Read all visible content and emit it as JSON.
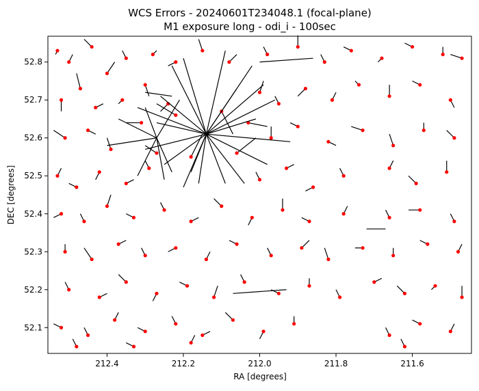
{
  "chart_data": {
    "type": "scatter",
    "title_line1": "WCS Errors - 20240601T234048.1 (focal-plane)",
    "title_line2": "M1 exposure long - odi_i - 100sec",
    "xlabel": "RA [degrees]",
    "ylabel": "DEC [degrees]",
    "xlim": [
      212.555,
      211.445
    ],
    "ylim": [
      52.032,
      52.868
    ],
    "x_inverted": true,
    "grid": false,
    "point_color": "#ff0000",
    "vector_color": "#000000",
    "x_ticks": [
      {
        "value": 212.4,
        "label": "212.4"
      },
      {
        "value": 212.2,
        "label": "212.2"
      },
      {
        "value": 212.0,
        "label": "212.0"
      },
      {
        "value": 211.8,
        "label": "211.8"
      },
      {
        "value": 211.6,
        "label": "211.6"
      }
    ],
    "y_ticks": [
      {
        "value": 52.1,
        "label": "52.1"
      },
      {
        "value": 52.2,
        "label": "52.2"
      },
      {
        "value": 52.3,
        "label": "52.3"
      },
      {
        "value": 52.4,
        "label": "52.4"
      },
      {
        "value": 52.5,
        "label": "52.5"
      },
      {
        "value": 52.6,
        "label": "52.6"
      },
      {
        "value": 52.7,
        "label": "52.7"
      },
      {
        "value": 52.8,
        "label": "52.8"
      }
    ],
    "points": [
      {
        "x": 212.53,
        "y": 52.83,
        "dx": 0.005,
        "dy": -0.01
      },
      {
        "x": 212.5,
        "y": 52.8,
        "dx": -0.01,
        "dy": 0.02
      },
      {
        "x": 212.44,
        "y": 52.84,
        "dx": 0.02,
        "dy": 0.02
      },
      {
        "x": 212.4,
        "y": 52.77,
        "dx": -0.02,
        "dy": 0.03
      },
      {
        "x": 212.35,
        "y": 52.81,
        "dx": 0.01,
        "dy": 0.02
      },
      {
        "x": 212.28,
        "y": 52.82,
        "dx": -0.01,
        "dy": 0.01
      },
      {
        "x": 212.22,
        "y": 52.8,
        "dx": 0.02,
        "dy": -0.01
      },
      {
        "x": 212.15,
        "y": 52.83,
        "dx": 0.01,
        "dy": 0.03
      },
      {
        "x": 212.08,
        "y": 52.8,
        "dx": -0.02,
        "dy": 0.02
      },
      {
        "x": 211.98,
        "y": 52.82,
        "dx": 0.01,
        "dy": 0.02
      },
      {
        "x": 211.9,
        "y": 52.84,
        "dx": 0.0,
        "dy": 0.03
      },
      {
        "x": 211.83,
        "y": 52.8,
        "dx": 0.01,
        "dy": 0.02
      },
      {
        "x": 211.76,
        "y": 52.83,
        "dx": 0.02,
        "dy": 0.01
      },
      {
        "x": 211.68,
        "y": 52.81,
        "dx": 0.01,
        "dy": -0.01
      },
      {
        "x": 211.6,
        "y": 52.84,
        "dx": 0.02,
        "dy": 0.01
      },
      {
        "x": 211.52,
        "y": 52.82,
        "dx": 0.0,
        "dy": 0.02
      },
      {
        "x": 211.47,
        "y": 52.81,
        "dx": 0.03,
        "dy": 0.01
      },
      {
        "x": 212.52,
        "y": 52.7,
        "dx": 0.0,
        "dy": -0.03
      },
      {
        "x": 212.47,
        "y": 52.73,
        "dx": 0.01,
        "dy": 0.04
      },
      {
        "x": 212.43,
        "y": 52.68,
        "dx": -0.02,
        "dy": 0.01
      },
      {
        "x": 212.36,
        "y": 52.7,
        "dx": 0.01,
        "dy": -0.01
      },
      {
        "x": 212.3,
        "y": 52.74,
        "dx": -0.01,
        "dy": -0.03
      },
      {
        "x": 212.24,
        "y": 52.69,
        "dx": 0.02,
        "dy": -0.02
      },
      {
        "x": 212.0,
        "y": 52.72,
        "dx": -0.01,
        "dy": 0.03
      },
      {
        "x": 211.95,
        "y": 52.69,
        "dx": 0.01,
        "dy": 0.02
      },
      {
        "x": 211.88,
        "y": 52.73,
        "dx": 0.02,
        "dy": -0.02
      },
      {
        "x": 211.81,
        "y": 52.7,
        "dx": -0.01,
        "dy": 0.02
      },
      {
        "x": 211.74,
        "y": 52.74,
        "dx": 0.01,
        "dy": 0.01
      },
      {
        "x": 211.66,
        "y": 52.71,
        "dx": 0.0,
        "dy": 0.03
      },
      {
        "x": 211.58,
        "y": 52.74,
        "dx": 0.02,
        "dy": 0.01
      },
      {
        "x": 211.5,
        "y": 52.7,
        "dx": -0.01,
        "dy": -0.02
      },
      {
        "x": 212.51,
        "y": 52.6,
        "dx": 0.03,
        "dy": 0.02
      },
      {
        "x": 212.45,
        "y": 52.62,
        "dx": -0.02,
        "dy": -0.01
      },
      {
        "x": 212.39,
        "y": 52.57,
        "dx": 0.01,
        "dy": 0.03
      },
      {
        "x": 211.97,
        "y": 52.6,
        "dx": 0.0,
        "dy": 0.03
      },
      {
        "x": 211.9,
        "y": 52.63,
        "dx": 0.02,
        "dy": 0.01
      },
      {
        "x": 211.82,
        "y": 52.59,
        "dx": -0.02,
        "dy": -0.01
      },
      {
        "x": 211.73,
        "y": 52.62,
        "dx": 0.03,
        "dy": 0.01
      },
      {
        "x": 211.65,
        "y": 52.58,
        "dx": 0.01,
        "dy": 0.03
      },
      {
        "x": 211.57,
        "y": 52.62,
        "dx": 0.0,
        "dy": 0.02
      },
      {
        "x": 211.49,
        "y": 52.6,
        "dx": 0.02,
        "dy": 0.02
      },
      {
        "x": 212.53,
        "y": 52.5,
        "dx": -0.01,
        "dy": 0.02
      },
      {
        "x": 212.48,
        "y": 52.47,
        "dx": 0.02,
        "dy": 0.01
      },
      {
        "x": 212.42,
        "y": 52.51,
        "dx": 0.01,
        "dy": -0.02
      },
      {
        "x": 212.35,
        "y": 52.48,
        "dx": -0.02,
        "dy": 0.01
      },
      {
        "x": 212.29,
        "y": 52.52,
        "dx": 0.01,
        "dy": 0.02
      },
      {
        "x": 212.0,
        "y": 52.49,
        "dx": 0.01,
        "dy": 0.02
      },
      {
        "x": 211.93,
        "y": 52.52,
        "dx": -0.02,
        "dy": 0.01
      },
      {
        "x": 211.86,
        "y": 52.47,
        "dx": 0.02,
        "dy": -0.01
      },
      {
        "x": 211.78,
        "y": 52.5,
        "dx": 0.01,
        "dy": 0.02
      },
      {
        "x": 211.66,
        "y": 52.52,
        "dx": -0.01,
        "dy": 0.02
      },
      {
        "x": 211.59,
        "y": 52.48,
        "dx": 0.02,
        "dy": 0.02
      },
      {
        "x": 211.51,
        "y": 52.51,
        "dx": 0.0,
        "dy": 0.03
      },
      {
        "x": 212.52,
        "y": 52.4,
        "dx": 0.02,
        "dy": -0.01
      },
      {
        "x": 212.46,
        "y": 52.38,
        "dx": 0.01,
        "dy": 0.02
      },
      {
        "x": 212.4,
        "y": 52.42,
        "dx": -0.01,
        "dy": 0.03
      },
      {
        "x": 212.33,
        "y": 52.39,
        "dx": 0.02,
        "dy": 0.01
      },
      {
        "x": 212.25,
        "y": 52.41,
        "dx": 0.01,
        "dy": 0.02
      },
      {
        "x": 212.18,
        "y": 52.38,
        "dx": -0.02,
        "dy": 0.01
      },
      {
        "x": 212.1,
        "y": 52.42,
        "dx": 0.02,
        "dy": 0.02
      },
      {
        "x": 212.02,
        "y": 52.39,
        "dx": 0.01,
        "dy": -0.02
      },
      {
        "x": 211.94,
        "y": 52.41,
        "dx": 0.0,
        "dy": 0.03
      },
      {
        "x": 211.87,
        "y": 52.38,
        "dx": 0.02,
        "dy": 0.01
      },
      {
        "x": 211.78,
        "y": 52.4,
        "dx": -0.01,
        "dy": 0.02
      },
      {
        "x": 211.66,
        "y": 52.39,
        "dx": 0.01,
        "dy": 0.02
      },
      {
        "x": 211.58,
        "y": 52.41,
        "dx": 0.03,
        "dy": 0.0
      },
      {
        "x": 211.49,
        "y": 52.38,
        "dx": 0.01,
        "dy": 0.02
      },
      {
        "x": 212.51,
        "y": 52.3,
        "dx": 0.0,
        "dy": 0.02
      },
      {
        "x": 212.44,
        "y": 52.28,
        "dx": 0.02,
        "dy": 0.03
      },
      {
        "x": 212.37,
        "y": 52.32,
        "dx": -0.02,
        "dy": 0.01
      },
      {
        "x": 212.3,
        "y": 52.29,
        "dx": 0.01,
        "dy": 0.02
      },
      {
        "x": 212.22,
        "y": 52.31,
        "dx": 0.02,
        "dy": -0.01
      },
      {
        "x": 212.14,
        "y": 52.28,
        "dx": -0.01,
        "dy": 0.02
      },
      {
        "x": 212.06,
        "y": 52.32,
        "dx": 0.02,
        "dy": 0.01
      },
      {
        "x": 211.97,
        "y": 52.29,
        "dx": 0.01,
        "dy": 0.02
      },
      {
        "x": 211.89,
        "y": 52.31,
        "dx": -0.02,
        "dy": 0.02
      },
      {
        "x": 211.82,
        "y": 52.28,
        "dx": 0.01,
        "dy": 0.03
      },
      {
        "x": 211.73,
        "y": 52.31,
        "dx": 0.02,
        "dy": 0.0
      },
      {
        "x": 211.65,
        "y": 52.29,
        "dx": 0.0,
        "dy": 0.02
      },
      {
        "x": 211.56,
        "y": 52.32,
        "dx": 0.02,
        "dy": 0.01
      },
      {
        "x": 211.48,
        "y": 52.3,
        "dx": -0.01,
        "dy": 0.02
      },
      {
        "x": 212.5,
        "y": 52.2,
        "dx": 0.01,
        "dy": 0.02
      },
      {
        "x": 212.42,
        "y": 52.18,
        "dx": -0.02,
        "dy": 0.01
      },
      {
        "x": 212.35,
        "y": 52.22,
        "dx": 0.02,
        "dy": 0.02
      },
      {
        "x": 212.27,
        "y": 52.19,
        "dx": 0.01,
        "dy": -0.02
      },
      {
        "x": 212.19,
        "y": 52.21,
        "dx": 0.02,
        "dy": 0.01
      },
      {
        "x": 212.12,
        "y": 52.18,
        "dx": -0.01,
        "dy": 0.03
      },
      {
        "x": 212.04,
        "y": 52.22,
        "dx": 0.01,
        "dy": 0.02
      },
      {
        "x": 211.95,
        "y": 52.19,
        "dx": 0.02,
        "dy": 0.01
      },
      {
        "x": 211.87,
        "y": 52.21,
        "dx": 0.0,
        "dy": 0.02
      },
      {
        "x": 211.79,
        "y": 52.18,
        "dx": 0.01,
        "dy": 0.02
      },
      {
        "x": 211.7,
        "y": 52.22,
        "dx": -0.02,
        "dy": 0.01
      },
      {
        "x": 211.62,
        "y": 52.19,
        "dx": 0.02,
        "dy": 0.02
      },
      {
        "x": 211.54,
        "y": 52.21,
        "dx": 0.01,
        "dy": -0.01
      },
      {
        "x": 211.47,
        "y": 52.18,
        "dx": 0.0,
        "dy": 0.03
      },
      {
        "x": 212.52,
        "y": 52.1,
        "dx": 0.02,
        "dy": 0.01
      },
      {
        "x": 212.45,
        "y": 52.08,
        "dx": 0.01,
        "dy": 0.02
      },
      {
        "x": 212.38,
        "y": 52.12,
        "dx": -0.01,
        "dy": 0.02
      },
      {
        "x": 212.3,
        "y": 52.09,
        "dx": 0.02,
        "dy": 0.01
      },
      {
        "x": 212.22,
        "y": 52.11,
        "dx": 0.01,
        "dy": 0.02
      },
      {
        "x": 212.15,
        "y": 52.08,
        "dx": -0.02,
        "dy": 0.01
      },
      {
        "x": 212.07,
        "y": 52.12,
        "dx": 0.02,
        "dy": 0.02
      },
      {
        "x": 211.99,
        "y": 52.09,
        "dx": 0.01,
        "dy": -0.02
      },
      {
        "x": 211.91,
        "y": 52.11,
        "dx": 0.0,
        "dy": 0.02
      },
      {
        "x": 211.66,
        "y": 52.08,
        "dx": 0.01,
        "dy": 0.02
      },
      {
        "x": 211.58,
        "y": 52.11,
        "dx": 0.02,
        "dy": 0.01
      },
      {
        "x": 211.5,
        "y": 52.09,
        "dx": -0.01,
        "dy": 0.02
      },
      {
        "x": 212.48,
        "y": 52.05,
        "dx": 0.01,
        "dy": 0.02
      },
      {
        "x": 212.33,
        "y": 52.05,
        "dx": 0.02,
        "dy": 0.01
      },
      {
        "x": 212.18,
        "y": 52.06,
        "dx": -0.01,
        "dy": 0.02
      },
      {
        "x": 211.62,
        "y": 52.05,
        "dx": 0.01,
        "dy": 0.02
      },
      {
        "x": 212.31,
        "y": 52.64,
        "dx": 0.04,
        "dy": 0.0
      },
      {
        "x": 212.27,
        "y": 52.56,
        "dx": 0.03,
        "dy": 0.02
      },
      {
        "x": 212.22,
        "y": 52.66,
        "dx": 0.05,
        "dy": 0.03
      },
      {
        "x": 212.18,
        "y": 52.55,
        "dx": -0.03,
        "dy": 0.06
      },
      {
        "x": 212.1,
        "y": 52.67,
        "dx": -0.03,
        "dy": -0.06
      },
      {
        "x": 212.06,
        "y": 52.56,
        "dx": -0.05,
        "dy": 0.04
      },
      {
        "x": 212.03,
        "y": 52.64,
        "dx": -0.05,
        "dy": -0.01
      }
    ],
    "outlier_vectors": [
      {
        "x": 212.14,
        "y": 52.61,
        "dx": 0.06,
        "dy": -0.14
      },
      {
        "x": 212.14,
        "y": 52.61,
        "dx": -0.1,
        "dy": -0.13
      },
      {
        "x": 212.14,
        "y": 52.61,
        "dx": 0.13,
        "dy": 0.03
      },
      {
        "x": 212.14,
        "y": 52.61,
        "dx": -0.12,
        "dy": 0.18
      },
      {
        "x": 212.14,
        "y": 52.61,
        "dx": 0.09,
        "dy": 0.18
      },
      {
        "x": 212.14,
        "y": 52.61,
        "dx": -0.15,
        "dy": 0.13
      },
      {
        "x": 212.14,
        "y": 52.61,
        "dx": -0.05,
        "dy": 0.22
      },
      {
        "x": 212.14,
        "y": 52.61,
        "dx": 0.02,
        "dy": -0.13
      },
      {
        "x": 212.14,
        "y": 52.61,
        "dx": -0.16,
        "dy": -0.08
      },
      {
        "x": 212.14,
        "y": 52.61,
        "dx": 0.11,
        "dy": -0.08
      },
      {
        "x": 212.14,
        "y": 52.61,
        "dx": -0.22,
        "dy": -0.02
      },
      {
        "x": 212.14,
        "y": 52.61,
        "dx": 0.16,
        "dy": -0.04
      },
      {
        "x": 212.14,
        "y": 52.61,
        "dx": -0.05,
        "dy": -0.13
      },
      {
        "x": 212.14,
        "y": 52.61,
        "dx": 0.06,
        "dy": 0.2
      },
      {
        "x": 212.14,
        "y": 52.61,
        "dx": -0.13,
        "dy": 0.04
      },
      {
        "x": 212.14,
        "y": 52.61,
        "dx": 0.12,
        "dy": 0.1
      },
      {
        "x": 212.14,
        "y": 52.61,
        "dx": 0.04,
        "dy": -0.1
      },
      {
        "x": 212.14,
        "y": 52.61,
        "dx": -0.08,
        "dy": 0.12
      },
      {
        "x": 212.14,
        "y": 52.61,
        "dx": 0.18,
        "dy": 0.07
      },
      {
        "x": 212.14,
        "y": 52.61,
        "dx": -0.18,
        "dy": 0.09
      },
      {
        "x": 212.27,
        "y": 52.6,
        "dx": 0.05,
        "dy": -0.1
      },
      {
        "x": 212.27,
        "y": 52.6,
        "dx": -0.04,
        "dy": -0.09
      },
      {
        "x": 212.27,
        "y": 52.6,
        "dx": 0.1,
        "dy": 0.05
      },
      {
        "x": 212.27,
        "y": 52.6,
        "dx": 0.03,
        "dy": 0.08
      },
      {
        "x": 212.27,
        "y": 52.6,
        "dx": -0.06,
        "dy": 0.1
      },
      {
        "x": 212.27,
        "y": 52.6,
        "dx": 0.13,
        "dy": -0.02
      },
      {
        "x": 212.27,
        "y": 52.6,
        "dx": -0.02,
        "dy": -0.11
      },
      {
        "x": 212.0,
        "y": 52.8,
        "dx": -0.14,
        "dy": 0.01
      },
      {
        "x": 212.3,
        "y": 52.72,
        "dx": -0.07,
        "dy": -0.01
      },
      {
        "x": 211.93,
        "y": 52.2,
        "dx": 0.14,
        "dy": -0.01
      },
      {
        "x": 211.67,
        "y": 52.36,
        "dx": 0.05,
        "dy": 0.0
      }
    ]
  }
}
